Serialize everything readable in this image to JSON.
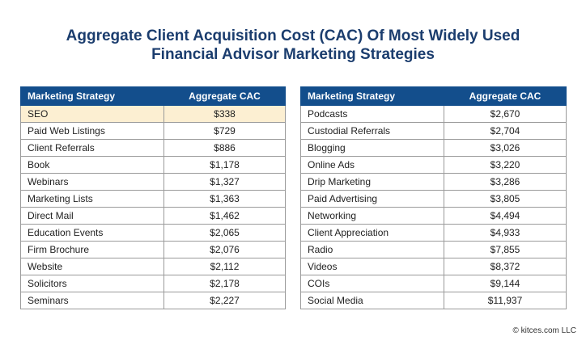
{
  "title_line1": "Aggregate Client Acquisition Cost (CAC) Of Most Widely Used",
  "title_line2": "Financial Advisor Marketing Strategies",
  "footer": "© kitces.com LLC",
  "colors": {
    "header": "#134e8c",
    "highlight": "#fcefd2",
    "title": "#1b3d6e"
  },
  "chart_data": {
    "type": "table",
    "title": "Aggregate Client Acquisition Cost (CAC) Of Most Widely Used Financial Advisor Marketing Strategies",
    "columns": [
      "Marketing Strategy",
      "Aggregate CAC"
    ],
    "highlighted_row": "SEO",
    "tables": [
      {
        "rows": [
          [
            "SEO",
            "$338"
          ],
          [
            "Paid Web Listings",
            "$729"
          ],
          [
            "Client Referrals",
            "$886"
          ],
          [
            "Book",
            "$1,178"
          ],
          [
            "Webinars",
            "$1,327"
          ],
          [
            "Marketing Lists",
            "$1,363"
          ],
          [
            "Direct Mail",
            "$1,462"
          ],
          [
            "Education Events",
            "$2,065"
          ],
          [
            "Firm Brochure",
            "$2,076"
          ],
          [
            "Website",
            "$2,112"
          ],
          [
            "Solicitors",
            "$2,178"
          ],
          [
            "Seminars",
            "$2,227"
          ]
        ]
      },
      {
        "rows": [
          [
            "Podcasts",
            "$2,670"
          ],
          [
            "Custodial Referrals",
            "$2,704"
          ],
          [
            "Blogging",
            "$3,026"
          ],
          [
            "Online Ads",
            "$3,220"
          ],
          [
            "Drip Marketing",
            "$3,286"
          ],
          [
            "Paid Advertising",
            "$3,805"
          ],
          [
            "Networking",
            "$4,494"
          ],
          [
            "Client Appreciation",
            "$4,933"
          ],
          [
            "Radio",
            "$7,855"
          ],
          [
            "Videos",
            "$8,372"
          ],
          [
            "COIs",
            "$9,144"
          ],
          [
            "Social Media",
            "$11,937"
          ]
        ]
      }
    ]
  }
}
